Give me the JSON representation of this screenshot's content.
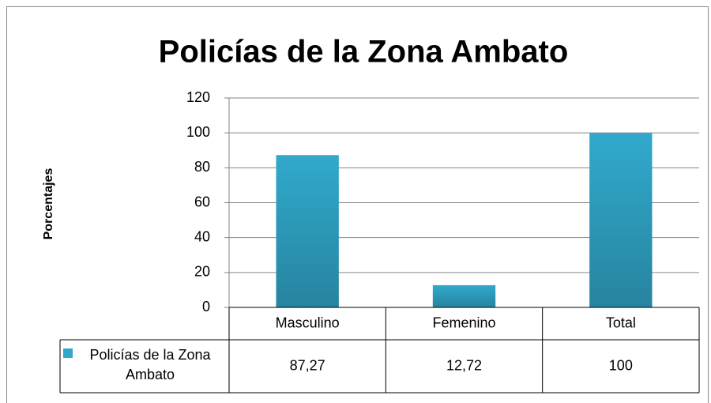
{
  "chart_data": {
    "type": "bar",
    "title": "Policías de la Zona Ambato",
    "y_label": "Porcentajes",
    "categories": [
      "Masculino",
      "Femenino",
      "Total"
    ],
    "series": [
      {
        "name": "Policías de la Zona Ambato",
        "color": "#31a9cc",
        "values": [
          87.27,
          12.72,
          100
        ],
        "value_labels": [
          "87,27",
          "12,72",
          "100"
        ]
      }
    ],
    "ylim": [
      0,
      120
    ],
    "yticks": [
      0,
      20,
      40,
      60,
      80,
      100,
      120
    ],
    "grid": true,
    "data_table": true
  }
}
